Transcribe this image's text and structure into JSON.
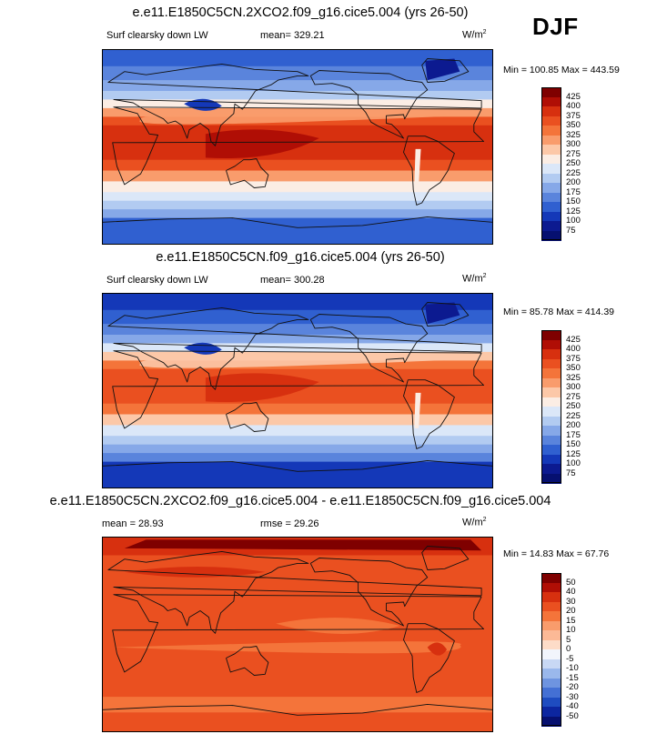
{
  "season": "DJF",
  "panels": [
    {
      "title": "e.e11.E1850C5CN.2XCO2.f09_g16.cice5.004 (yrs 26-50)",
      "variable": "Surf clearsky down LW",
      "mean_text": "mean= 329.21",
      "units_base": "W/m",
      "units_exp": "2",
      "minmax_text": "Min = 100.85 Max = 443.59",
      "colorbar_labels": [
        "425",
        "400",
        "375",
        "350",
        "325",
        "300",
        "275",
        "250",
        "225",
        "200",
        "175",
        "150",
        "125",
        "100",
        "75"
      ]
    },
    {
      "title": "e.e11.E1850C5CN.f09_g16.cice5.004 (yrs 26-50)",
      "variable": "Surf clearsky down LW",
      "mean_text": "mean= 300.28",
      "units_base": "W/m",
      "units_exp": "2",
      "minmax_text": "Min =  85.78 Max = 414.39",
      "colorbar_labels": [
        "425",
        "400",
        "375",
        "350",
        "325",
        "300",
        "275",
        "250",
        "225",
        "200",
        "175",
        "150",
        "125",
        "100",
        "75"
      ]
    },
    {
      "title": "e.e11.E1850C5CN.2XCO2.f09_g16.cice5.004 - e.e11.E1850C5CN.f09_g16.cice5.004",
      "variable": "mean =  28.93",
      "mean_text": "rmse =  29.26",
      "units_base": "W/m",
      "units_exp": "2",
      "minmax_text": "Min =  14.83 Max =  67.76",
      "colorbar_labels": [
        "50",
        "40",
        "30",
        "20",
        "15",
        "10",
        "5",
        "0",
        "-5",
        "-10",
        "-15",
        "-20",
        "-30",
        "-40",
        "-50"
      ]
    }
  ],
  "colors": {
    "abs_scale": [
      "#7f0000",
      "#b00e05",
      "#d7300f",
      "#ea5020",
      "#f4743a",
      "#f99c6c",
      "#fcc8a8",
      "#fbede4",
      "#dbe7f8",
      "#b2cbf1",
      "#86a8e8",
      "#5a84dc",
      "#3060d0",
      "#1438b8",
      "#0c1a90",
      "#061070"
    ],
    "diff_scale": [
      "#7f0000",
      "#b00e05",
      "#d7300f",
      "#ea5020",
      "#f4743a",
      "#f99c6c",
      "#fcb996",
      "#fddcc8",
      "#f2f5fc",
      "#c8d8f4",
      "#9ab8ec",
      "#6e94e0",
      "#4470d4",
      "#1e4cc0",
      "#0c26a0",
      "#061070"
    ],
    "coast": "#111111"
  }
}
